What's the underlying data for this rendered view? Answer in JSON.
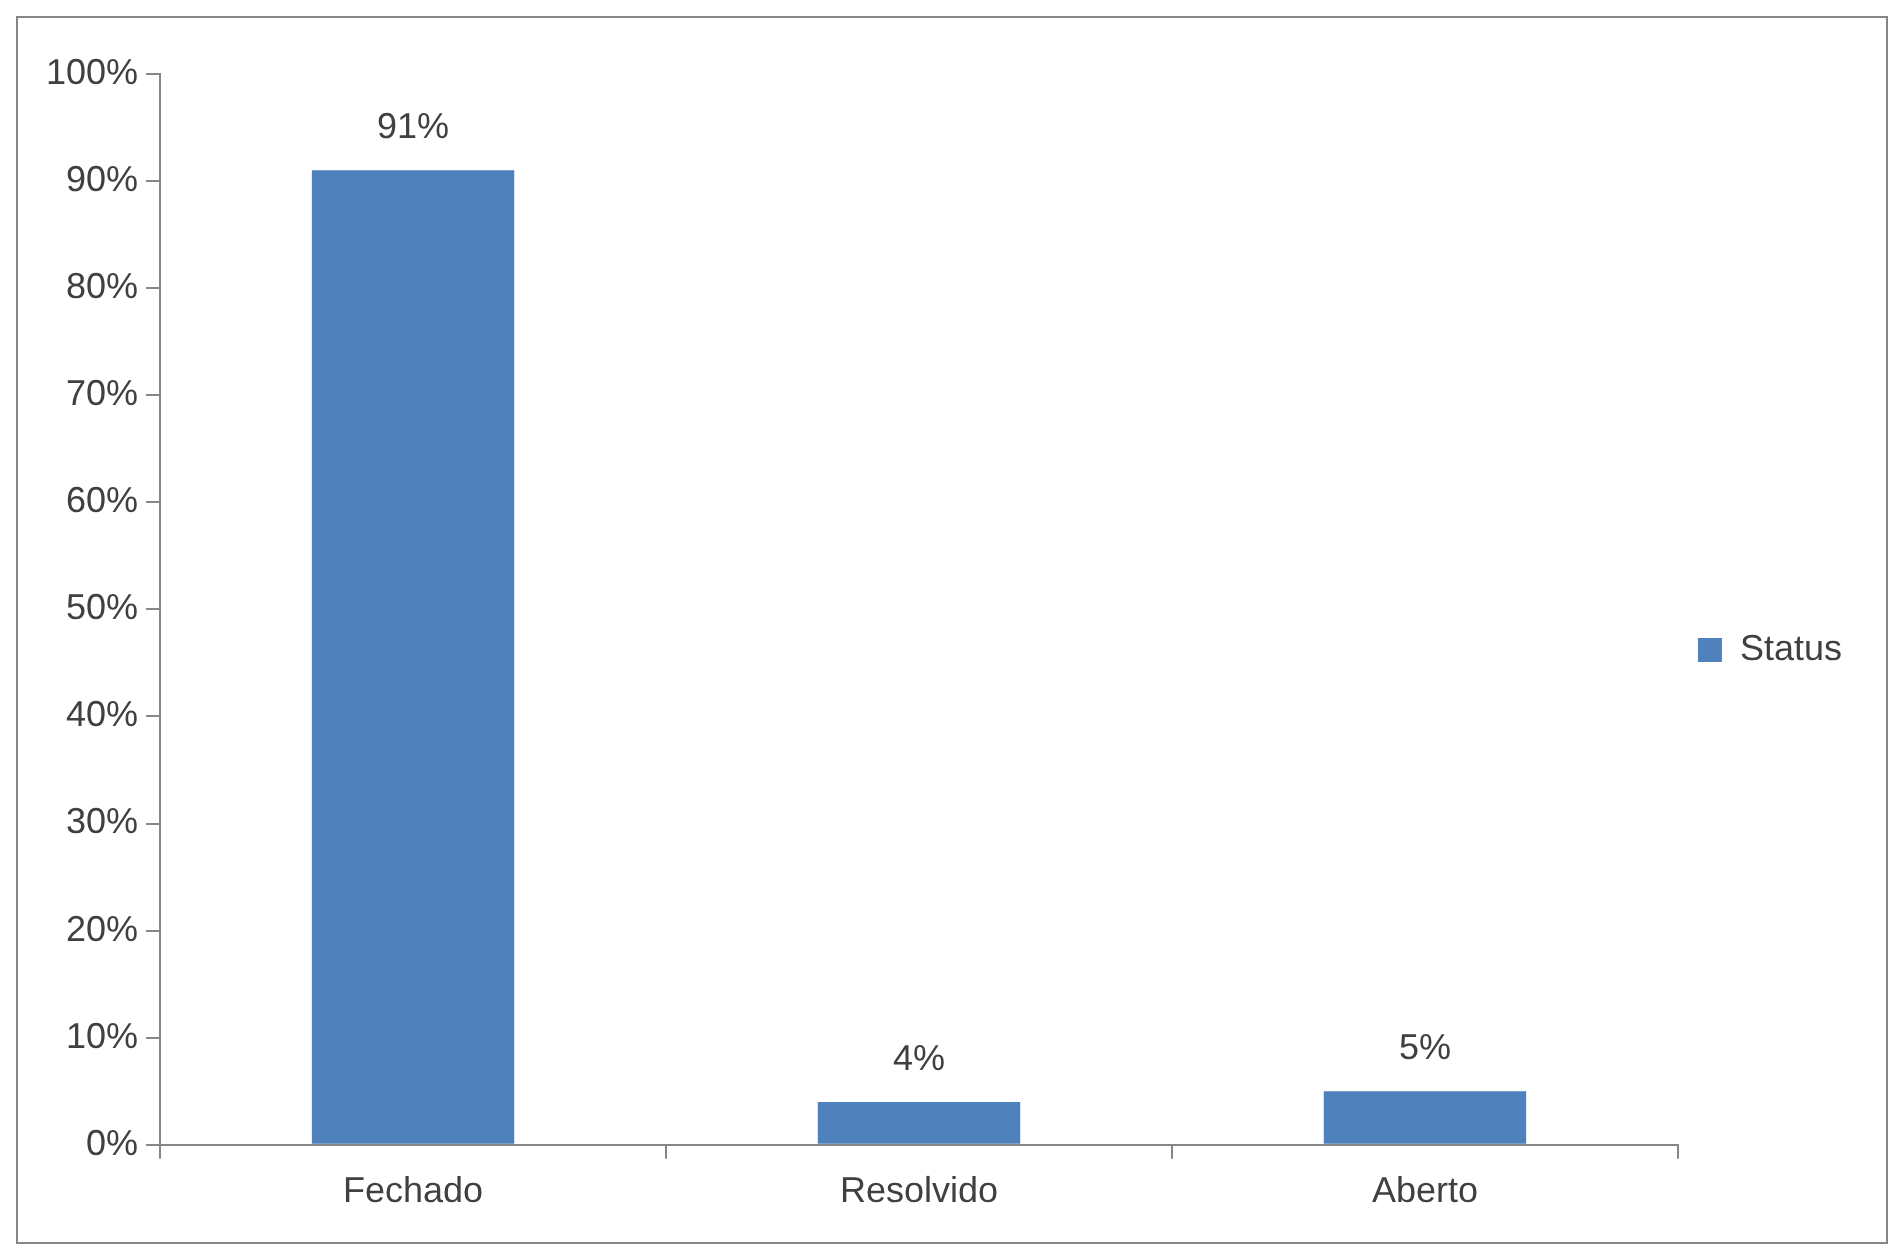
{
  "chart_data": {
    "type": "bar",
    "categories": [
      "Fechado",
      "Resolvido",
      "Aberto"
    ],
    "series": [
      {
        "name": "Status",
        "color": "#4f81bd",
        "values": [
          91,
          4,
          5
        ]
      }
    ],
    "value_labels": [
      "91%",
      "4%",
      "5%"
    ],
    "ylim": [
      0,
      100
    ],
    "yticks": [
      {
        "value": 0,
        "label": "0%"
      },
      {
        "value": 10,
        "label": "10%"
      },
      {
        "value": 20,
        "label": "20%"
      },
      {
        "value": 30,
        "label": "30%"
      },
      {
        "value": 40,
        "label": "40%"
      },
      {
        "value": 50,
        "label": "50%"
      },
      {
        "value": 60,
        "label": "60%"
      },
      {
        "value": 70,
        "label": "70%"
      },
      {
        "value": 80,
        "label": "80%"
      },
      {
        "value": 90,
        "label": "90%"
      },
      {
        "value": 100,
        "label": "100%"
      }
    ],
    "grid": false,
    "legend": "right"
  }
}
